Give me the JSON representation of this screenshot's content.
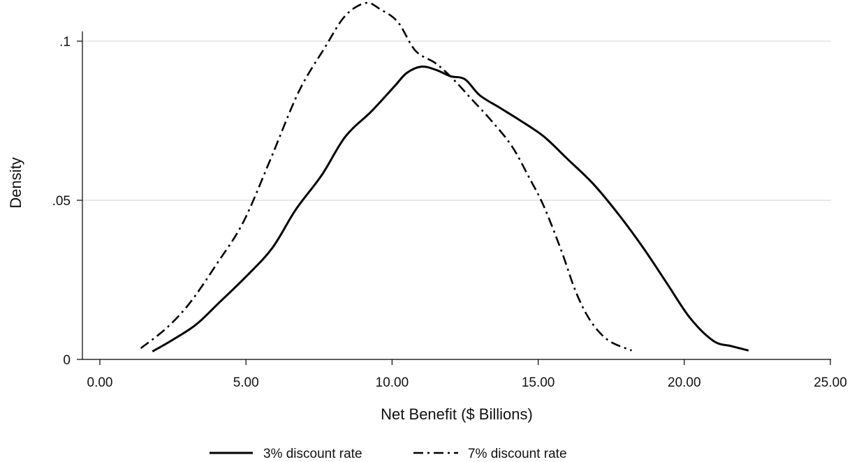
{
  "chart_data": {
    "type": "line",
    "title": "",
    "xlabel": "Net Benefit ($ Billions)",
    "ylabel": "Density",
    "xlim": [
      0,
      25
    ],
    "ylim": [
      0,
      0.113
    ],
    "x_ticks": [
      {
        "value": 0,
        "label": "0.00"
      },
      {
        "value": 5,
        "label": "5.00"
      },
      {
        "value": 10,
        "label": "10.00"
      },
      {
        "value": 15,
        "label": "15.00"
      },
      {
        "value": 20,
        "label": "20.00"
      },
      {
        "value": 25,
        "label": "25.00"
      }
    ],
    "y_ticks": [
      {
        "value": 0,
        "label": "0"
      },
      {
        "value": 0.05,
        "label": ".05"
      },
      {
        "value": 0.1,
        "label": ".1"
      }
    ],
    "grid": "horizontal",
    "legend_position": "bottom",
    "series": [
      {
        "name": "3% discount rate",
        "style": "solid",
        "color": "#000000",
        "points": [
          [
            1.8,
            0.0025
          ],
          [
            2.5,
            0.0062
          ],
          [
            3.3,
            0.011
          ],
          [
            4.1,
            0.018
          ],
          [
            5.0,
            0.026
          ],
          [
            5.9,
            0.035
          ],
          [
            6.7,
            0.047
          ],
          [
            7.6,
            0.058
          ],
          [
            8.4,
            0.07
          ],
          [
            9.3,
            0.078
          ],
          [
            10.1,
            0.086
          ],
          [
            10.5,
            0.09
          ],
          [
            11.0,
            0.092
          ],
          [
            11.5,
            0.091
          ],
          [
            12.0,
            0.089
          ],
          [
            12.5,
            0.088
          ],
          [
            13.0,
            0.083
          ],
          [
            13.7,
            0.079
          ],
          [
            14.4,
            0.075
          ],
          [
            15.2,
            0.07
          ],
          [
            16.0,
            0.063
          ],
          [
            16.9,
            0.055
          ],
          [
            17.8,
            0.045
          ],
          [
            18.6,
            0.035
          ],
          [
            19.4,
            0.024
          ],
          [
            20.2,
            0.013
          ],
          [
            21.0,
            0.0058
          ],
          [
            21.6,
            0.0042
          ],
          [
            22.2,
            0.0028
          ]
        ]
      },
      {
        "name": "7% discount rate",
        "style": "dashdot",
        "color": "#000000",
        "points": [
          [
            1.4,
            0.0035
          ],
          [
            2.3,
            0.01
          ],
          [
            3.1,
            0.018
          ],
          [
            4.0,
            0.03
          ],
          [
            4.9,
            0.043
          ],
          [
            5.8,
            0.062
          ],
          [
            6.8,
            0.084
          ],
          [
            7.7,
            0.098
          ],
          [
            8.4,
            0.108
          ],
          [
            9.1,
            0.112
          ],
          [
            9.6,
            0.11
          ],
          [
            10.2,
            0.106
          ],
          [
            10.8,
            0.097
          ],
          [
            11.5,
            0.093
          ],
          [
            12.1,
            0.088
          ],
          [
            12.7,
            0.082
          ],
          [
            13.4,
            0.075
          ],
          [
            14.1,
            0.067
          ],
          [
            14.7,
            0.057
          ],
          [
            15.2,
            0.048
          ],
          [
            15.8,
            0.034
          ],
          [
            16.3,
            0.021
          ],
          [
            16.8,
            0.012
          ],
          [
            17.4,
            0.006
          ],
          [
            18.2,
            0.0028
          ]
        ]
      }
    ]
  }
}
